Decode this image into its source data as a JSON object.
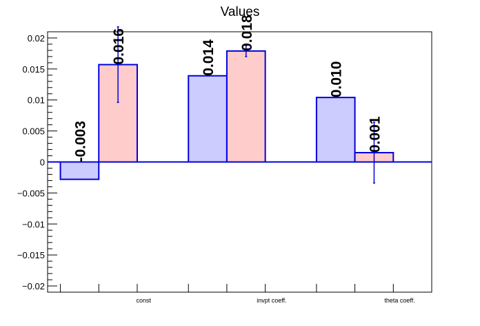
{
  "chart_data": {
    "type": "bar",
    "title": "Values",
    "xlabel": "",
    "ylabel": "",
    "ylim": [
      -0.021,
      0.021
    ],
    "yticks": [
      -0.02,
      -0.015,
      -0.01,
      -0.005,
      0,
      0.005,
      0.01,
      0.015,
      0.02
    ],
    "ytick_labels": [
      "−0.02",
      "−0.015",
      "−0.01",
      "−0.005",
      "0",
      "0.005",
      "0.01",
      "0.015",
      "0.02"
    ],
    "categories": [
      "const",
      "invpt coeff.",
      "theta coeff."
    ],
    "series": [
      {
        "fill": "#ccccff",
        "stroke": "#0000dd",
        "values": [
          -0.0028,
          0.0139,
          0.0104
        ],
        "labels": [
          "-0.003",
          "0.014",
          "0.010"
        ],
        "errors": [
          0,
          0,
          0
        ]
      },
      {
        "fill": "#ffcccc",
        "stroke": "#0000dd",
        "values": [
          0.0157,
          0.0179,
          0.0015
        ],
        "labels": [
          "0.016",
          "0.018",
          "0.001"
        ],
        "errors": [
          0.0061,
          0.0009,
          0.0049
        ]
      }
    ],
    "legend": "none",
    "grid": false
  }
}
